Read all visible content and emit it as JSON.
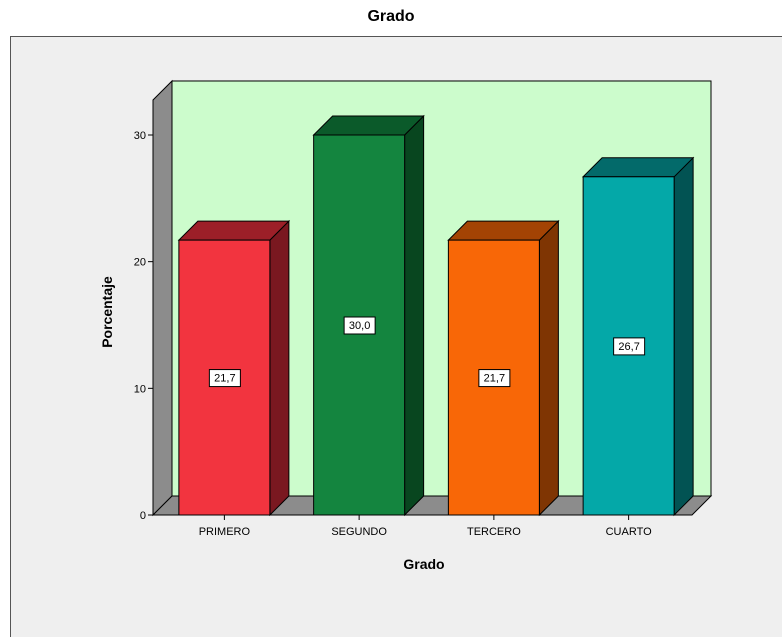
{
  "chart_data": {
    "type": "bar",
    "title": "Grado",
    "xlabel": "Grado",
    "ylabel": "Porcentaje",
    "categories": [
      "PRIMERO",
      "SEGUNDO",
      "TERCERO",
      "CUARTO"
    ],
    "values": [
      21.7,
      30.0,
      21.7,
      26.7
    ],
    "data_labels": [
      "21,7",
      "30,0",
      "21,7",
      "26,7"
    ],
    "yticks": [
      0,
      10,
      20,
      30
    ],
    "ytick_labels": [
      "0",
      "10",
      "20",
      "30"
    ],
    "ylim": [
      0,
      30
    ],
    "three_d": true,
    "colors": {
      "plot_background": "#ccfccc",
      "outer_background": "#efefef",
      "bars": [
        "#f2343f",
        "#14853f",
        "#f86707",
        "#04a8a8"
      ],
      "bar_tops": [
        "#9c1f28",
        "#0b5a2a",
        "#a34304",
        "#036a6a"
      ],
      "bar_sides": [
        "#7a1820",
        "#08461f",
        "#7f3503",
        "#025353"
      ],
      "walls": "#8c8c8c"
    }
  }
}
